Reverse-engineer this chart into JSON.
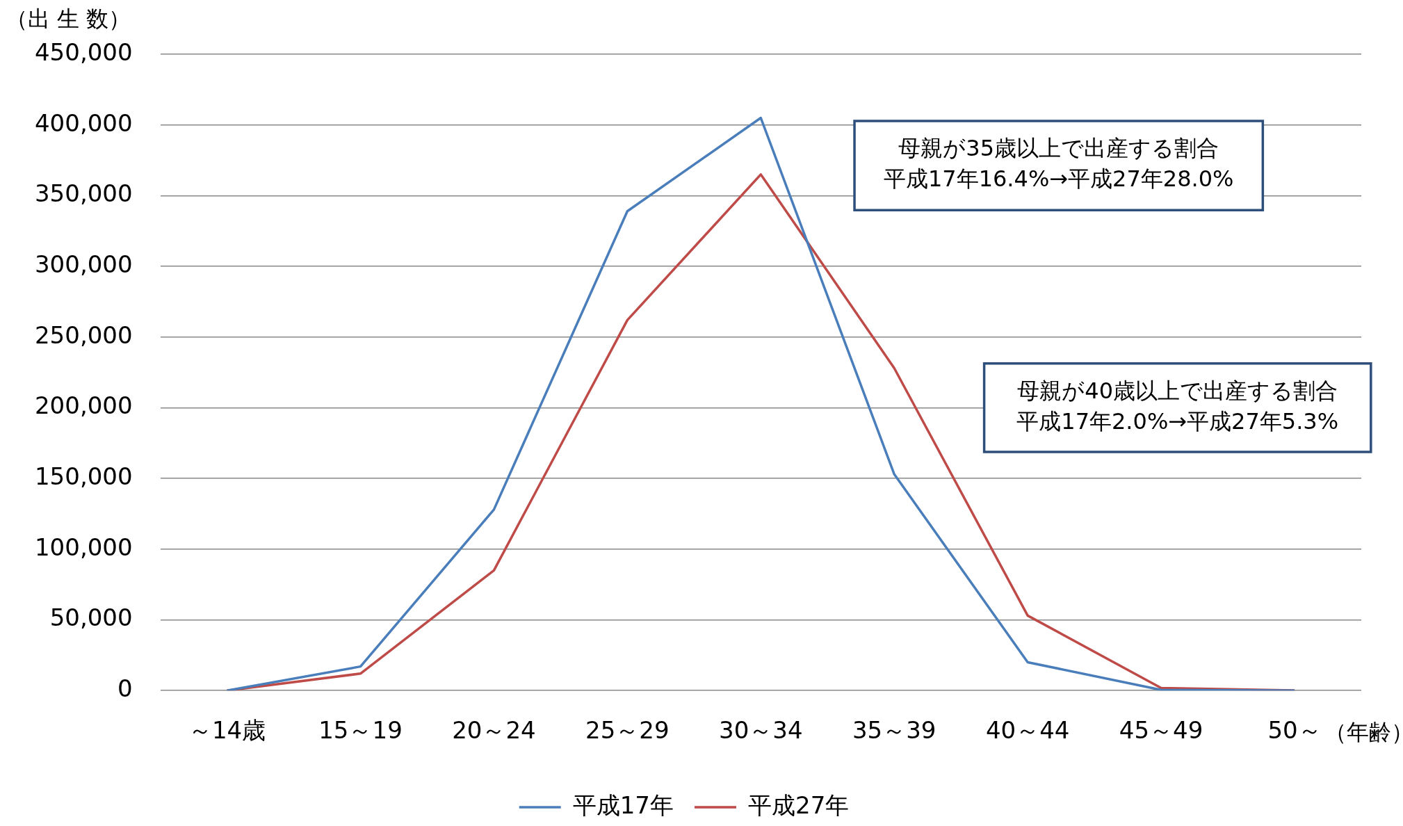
{
  "chart_data": {
    "type": "line",
    "ylabel": "（出 生 数）",
    "xlabel": "（年齢）",
    "categories": [
      "～14歳",
      "15～19",
      "20～24",
      "25～29",
      "30～34",
      "35～39",
      "40～44",
      "45～49",
      "50～"
    ],
    "series": [
      {
        "name": "平成17年",
        "color": "#4a7ebb",
        "values": [
          0,
          17000,
          128000,
          339000,
          405000,
          153000,
          20000,
          500,
          0
        ]
      },
      {
        "name": "平成27年",
        "color": "#be4b48",
        "values": [
          0,
          12000,
          85000,
          262000,
          365000,
          228000,
          53000,
          1800,
          100
        ]
      }
    ],
    "ylim": [
      0,
      450000
    ],
    "yticks": [
      0,
      {
        "value": 50000,
        "label": "50,000"
      },
      {
        "value": 100000,
        "label": "100,000"
      },
      {
        "value": 150000,
        "label": "150,000"
      },
      {
        "value": 200000,
        "label": "200,000"
      },
      {
        "value": 250000,
        "label": "250,000"
      },
      {
        "value": 300000,
        "label": "300,000"
      },
      {
        "value": 350000,
        "label": "350,000"
      },
      {
        "value": 400000,
        "label": "400,000"
      },
      {
        "value": 450000,
        "label": "450,000"
      }
    ],
    "grid": "y",
    "legend": "bottom",
    "marker": "none",
    "line_style": "solid",
    "annotations": [
      "母親が35歳以上で出産する割合",
      "平成17年16.4%→平成27年28.0%",
      "母親が40歳以上で出産する割合",
      "平成17年2.0%→平成27年5.3%"
    ]
  }
}
